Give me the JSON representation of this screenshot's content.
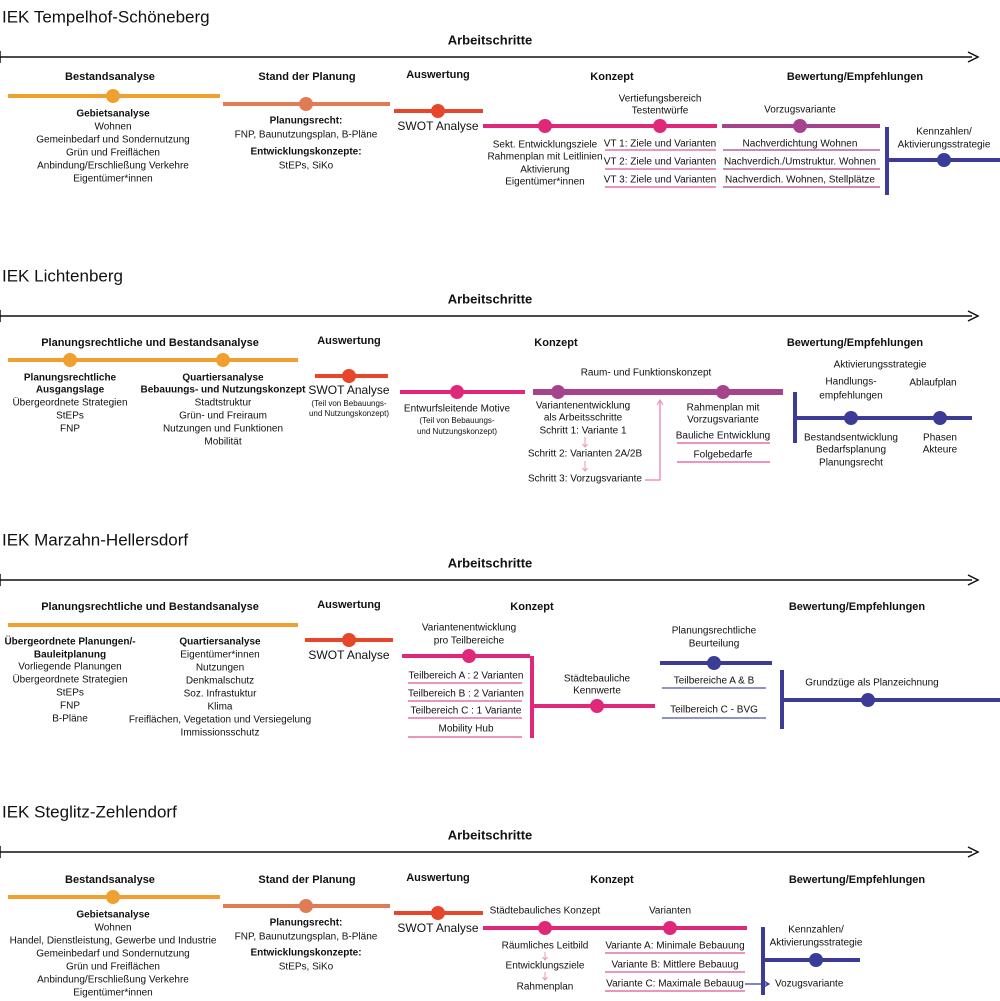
{
  "sections": [
    {
      "title": "IEK  Tempelhof-Schöneberg",
      "heading": "Arbeitschritte",
      "phases": [
        "Bestandsanalyse",
        "Stand der Planung",
        "Auswertung",
        "Konzept",
        "Bewertung/Empfehlungen"
      ],
      "texts": [
        "Gebietsanalyse",
        "Wohnen",
        "Gemeinbedarf und Sondernutzung",
        "Grün und Freiflächen",
        "Anbindung/Erschließung Verkehre",
        "Eigentümer*innen",
        "Planungsrecht:",
        "FNP, Baunutzungsplan, B-Pläne",
        "Entwicklungskonzepte:",
        "StEPs, SiKo",
        "SWOT Analyse",
        "Vertiefungsbereich",
        "Testentwürfe",
        "Sekt. Entwicklungsziele",
        "Rahmenplan mit Leitlinien",
        "Aktivierung",
        "Eigentümer*innen",
        "VT 1: Ziele und Varianten",
        "VT 2: Ziele und Varianten",
        "VT 3: Ziele und Varianten",
        "Vorzugsvariante",
        "Nachverdichtung Wohnen",
        "Nachverdich./Umstruktur. Wohnen",
        "Nachverdich. Wohnen, Stellplätze",
        "Kennzahlen/",
        "Aktivierungsstrategie"
      ]
    },
    {
      "title": "IEK Lichtenberg",
      "heading": "Arbeitschritte",
      "phases": [
        "Planungsrechtliche und Bestandsanalyse",
        "Auswertung",
        "Konzept",
        "Bewertung/Empfehlungen"
      ],
      "texts": [
        "Planungsrechtliche",
        "Ausgangslage",
        "Übergeordnete Strategien",
        "StEPs",
        "FNP",
        "Quartiersanalyse",
        "Bebauungs- und Nutzungskonzept",
        "Stadtstruktur",
        "Grün- und Freiraum",
        "Nutzungen und Funktionen",
        "Mobilität",
        "SWOT Analyse",
        "(Teil von Bebauungs-",
        "und Nutzungskonzept)",
        "Entwurfsleitende Motive",
        "(Teil von Bebauungs-",
        "und Nutzungskonzept)",
        "Raum- und Funktionskonzept",
        "Variantenentwicklung",
        "als Arbeitsschritte",
        "Schritt 1: Variante 1",
        "Schritt 2: Varianten 2A/2B",
        "Schritt 3: Vorzugsvariante",
        "Rahmenplan mit",
        "Vorzugsvariante",
        "Bauliche Entwicklung",
        "Folgebedarfe",
        "Aktivierungsstrategie",
        "Handlungs-",
        "empfehlungen",
        "Ablaufplan",
        "Bestandsentwicklung",
        "Bedarfsplanung",
        "Planungsrecht",
        "Phasen",
        "Akteure"
      ]
    },
    {
      "title": "IEK Marzahn-Hellersdorf",
      "heading": "Arbeitschritte",
      "phases": [
        "Planungsrechtliche und Bestandsanalyse",
        "Auswertung",
        "Konzept",
        "Bewertung/Empfehlungen"
      ],
      "texts": [
        "Übergeordnete Planungen/-",
        "Bauleitplanung",
        "Vorliegende Planungen",
        "Übergeordnete Strategien",
        "StEPs",
        "FNP",
        "B-Pläne",
        "Quartiersanalyse",
        "Eigentümer*innen",
        "Nutzungen",
        "Denkmalschutz",
        "Soz. Infrastuktur",
        "Klima",
        "Freiflächen, Vegetation und Versiegelung",
        "Immissionsschutz",
        "SWOT Analyse",
        "Variantenentwicklung",
        "pro Teilbereiche",
        "Teilbereich A : 2 Varianten",
        "Teilbereich B : 2 Varianten",
        "Teilbereich C : 1 Variante",
        "Mobility Hub",
        "Städtebauliche",
        "Kennwerte",
        "Planungsrechtliche",
        "Beurteilung",
        "Teilbereiche A & B",
        "Teilbereich C - BVG",
        "Grundzüge als Planzeichnung"
      ]
    },
    {
      "title": "IEK  Steglitz-Zehlendorf",
      "heading": "Arbeitschritte",
      "phases": [
        "Bestandsanalyse",
        "Stand der Planung",
        "Auswertung",
        "Konzept",
        "Bewertung/Empfehlungen"
      ],
      "texts": [
        "Gebietsanalyse",
        "Wohnen",
        "Handel, Dienstleistung, Gewerbe und Industrie",
        "Gemeinbedarf und Sondernutzung",
        "Grün und Freiflächen",
        "Anbindung/Erschließung Verkehre",
        "Eigentümer*innen",
        "Planungsrecht:",
        "FNP, Baunutzungsplan, B-Pläne",
        "Entwicklungskonzepte:",
        "StEPs, SiKo",
        "SWOT Analyse",
        "Städtebauliches Konzept",
        "Varianten",
        "Räumliches Leitbild",
        "Entwicklungsziele",
        "Rahmenplan",
        "Variante A: Minimale Bebauung",
        "Variante B: Mittlere Bebauug",
        "Variante C: Maximale Bebauug",
        "Kennzahlen/",
        "Aktivierungsstrategie",
        "Vozugsvariante"
      ]
    }
  ]
}
